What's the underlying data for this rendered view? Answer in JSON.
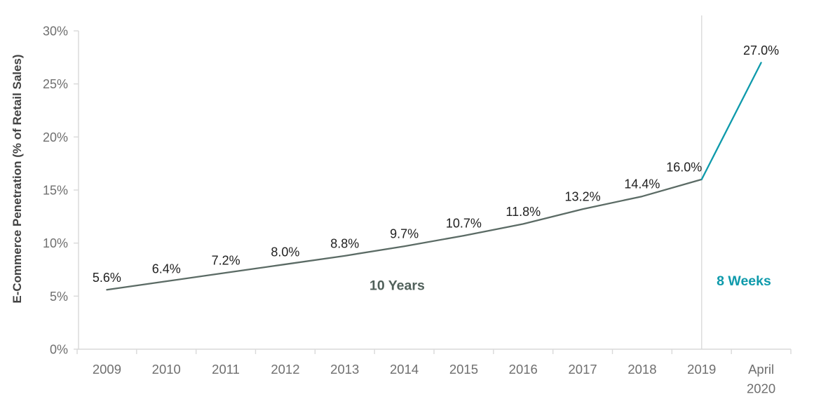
{
  "chart_data": {
    "type": "line",
    "title": "",
    "xlabel": "",
    "ylabel": "E-Commerce Penetration (% of Retail Sales)",
    "categories": [
      "2009",
      "2010",
      "2011",
      "2012",
      "2013",
      "2014",
      "2015",
      "2016",
      "2017",
      "2018",
      "2019",
      "April 2020"
    ],
    "values": [
      5.6,
      6.4,
      7.2,
      8.0,
      8.8,
      9.7,
      10.7,
      11.8,
      13.2,
      14.4,
      16.0,
      27.0
    ],
    "point_labels": [
      "5.6%",
      "6.4%",
      "7.2%",
      "8.0%",
      "8.8%",
      "9.7%",
      "10.7%",
      "11.8%",
      "13.2%",
      "14.4%",
      "16.0%",
      "27.0%"
    ],
    "ylim": [
      0,
      30
    ],
    "ytick_values": [
      0,
      5,
      10,
      15,
      20,
      25,
      30
    ],
    "ytick_labels": [
      "0%",
      "5%",
      "10%",
      "15%",
      "20%",
      "25%",
      "30%"
    ],
    "grid": false,
    "legend": false,
    "series": [
      {
        "name": "10 Years",
        "color": "#5b6b65",
        "index_range": [
          0,
          10
        ]
      },
      {
        "name": "8 Weeks",
        "color": "#0e9aab",
        "index_range": [
          10,
          11
        ]
      }
    ],
    "divider_category": "2019",
    "annotations": [
      {
        "text": "10 Years",
        "x_index": 4.88,
        "y_value": 5.6,
        "color": "#51615b",
        "bold": true
      },
      {
        "text": "8 Weeks",
        "x_index": 10.71,
        "y_value": 6.0,
        "color": "#0e9aab",
        "bold": true
      }
    ],
    "label_offsets": {
      "10": -25
    },
    "colors": {
      "data_label": "#212121",
      "tick_label": "#6f6f6f",
      "axis": "#d9d9d9",
      "ylabel": "#424242",
      "divider": "#dadada"
    }
  }
}
